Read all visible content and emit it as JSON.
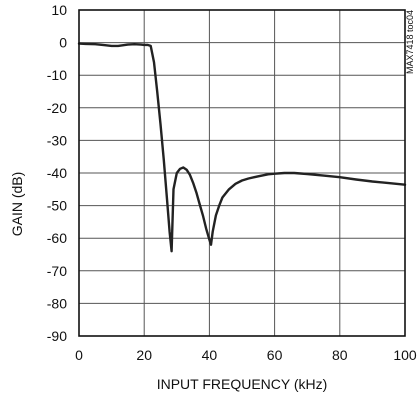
{
  "chart_data": {
    "type": "line",
    "title": "",
    "xlabel": "INPUT FREQUENCY (kHz)",
    "ylabel": "GAIN (dB)",
    "xlim": [
      0,
      100
    ],
    "ylim": [
      -90,
      10
    ],
    "x_ticks": [
      0,
      20,
      40,
      60,
      80,
      100
    ],
    "y_ticks": [
      10,
      0,
      -10,
      -20,
      -30,
      -40,
      -50,
      -60,
      -70,
      -80,
      -90
    ],
    "x_tick_labels": [
      "0",
      "20",
      "40",
      "60",
      "80",
      "100"
    ],
    "y_tick_labels": [
      "10",
      "0",
      "-10",
      "-20",
      "-30",
      "-40",
      "-50",
      "-60",
      "-70",
      "-80",
      "-90"
    ],
    "grid": true,
    "watermark": "MAX7418 toc04",
    "series": [
      {
        "color": "#222222",
        "x": [
          0,
          2,
          5,
          8,
          10,
          12,
          15,
          17,
          19,
          20,
          21,
          22,
          23,
          24,
          25,
          26,
          27,
          27.8,
          28.4,
          29,
          30,
          31,
          32,
          33,
          34,
          35,
          36,
          37,
          38,
          39,
          40,
          40.5,
          41,
          42,
          43,
          44,
          46,
          48,
          50,
          52,
          55,
          58,
          60,
          63,
          66,
          70,
          75,
          80,
          85,
          90,
          95,
          100
        ],
        "y": [
          -0.3,
          -0.4,
          -0.5,
          -0.8,
          -1.0,
          -1.0,
          -0.6,
          -0.5,
          -0.6,
          -0.7,
          -0.7,
          -1.0,
          -6,
          -15,
          -25,
          -36,
          -48,
          -58,
          -64,
          -45,
          -40,
          -38.7,
          -38.3,
          -39,
          -40.5,
          -43,
          -46,
          -49.5,
          -53,
          -57,
          -60.5,
          -62,
          -58,
          -53,
          -50,
          -47.5,
          -45,
          -43.3,
          -42.3,
          -41.7,
          -41,
          -40.4,
          -40.2,
          -40.0,
          -40.0,
          -40.3,
          -40.8,
          -41.3,
          -42,
          -42.6,
          -43.1,
          -43.6
        ]
      }
    ]
  }
}
